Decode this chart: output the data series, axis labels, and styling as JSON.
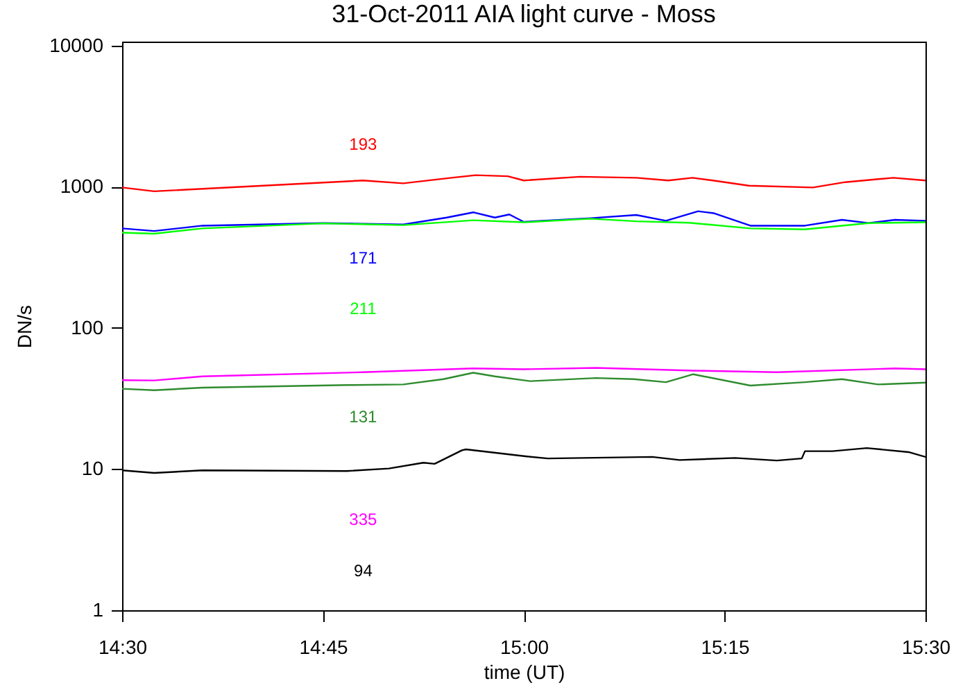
{
  "chart_data": {
    "type": "line",
    "title": "31-Oct-2011 AIA light curve - Moss",
    "xlabel": "time (UT)",
    "ylabel": "DN/s",
    "log": "y",
    "grid": false,
    "xlim": [
      14.5,
      15.5
    ],
    "xticks": [
      {
        "value": 14.5,
        "label": "14:30"
      },
      {
        "value": 14.75,
        "label": "14:45"
      },
      {
        "value": 15.0,
        "label": "15:00"
      },
      {
        "value": 15.25,
        "label": "15:15"
      },
      {
        "value": 15.5,
        "label": "15:30"
      }
    ],
    "ylim": [
      1,
      10700
    ],
    "yticks": [
      1,
      10,
      100,
      1000,
      10000
    ],
    "series": [
      {
        "name": "193",
        "color": "#ff0000",
        "x": [
          14.5,
          14.54,
          14.8,
          14.85,
          14.91,
          14.94,
          14.98,
          15.0,
          15.07,
          15.14,
          15.18,
          15.21,
          15.24,
          15.28,
          15.36,
          15.4,
          15.46,
          15.5
        ],
        "values": [
          990,
          930,
          1110,
          1060,
          1160,
          1210,
          1190,
          1110,
          1180,
          1160,
          1110,
          1160,
          1100,
          1020,
          990,
          1080,
          1160,
          1110
        ]
      },
      {
        "name": "171",
        "color": "#0000ff",
        "x": [
          14.5,
          14.54,
          14.6,
          14.75,
          14.85,
          14.904,
          14.937,
          14.964,
          14.982,
          15.0,
          15.083,
          15.14,
          15.177,
          15.217,
          15.237,
          15.282,
          15.35,
          15.396,
          15.429,
          15.462,
          15.5
        ],
        "values": [
          508,
          487,
          531,
          554,
          541,
          606,
          660,
          606,
          638,
          565,
          600,
          632,
          575,
          672,
          650,
          531,
          531,
          584,
          554,
          584,
          575
        ]
      },
      {
        "name": "211",
        "color": "#00ff00",
        "x": [
          14.5,
          14.54,
          14.6,
          14.75,
          14.85,
          14.937,
          15.0,
          15.083,
          15.14,
          15.206,
          15.282,
          15.35,
          15.429,
          15.5
        ],
        "values": [
          474,
          466,
          508,
          551,
          536,
          580,
          561,
          595,
          570,
          557,
          508,
          500,
          554,
          561
        ]
      },
      {
        "name": "131",
        "color": "#2e8b2e",
        "x": [
          14.5,
          14.54,
          14.6,
          14.78,
          14.85,
          14.9,
          14.937,
          14.964,
          15.008,
          15.09,
          15.137,
          15.177,
          15.211,
          15.282,
          15.35,
          15.396,
          15.441,
          15.5
        ],
        "values": [
          37.1,
          36.2,
          37.8,
          39.4,
          39.8,
          43.4,
          48.2,
          45.4,
          42,
          44.2,
          43.4,
          41.3,
          47,
          39.1,
          41.3,
          43.4,
          39.8,
          41
        ]
      },
      {
        "name": "335",
        "color": "#ff00ff",
        "x": [
          14.5,
          14.54,
          14.6,
          14.8,
          14.937,
          15.0,
          15.09,
          15.211,
          15.315,
          15.462,
          15.5
        ],
        "values": [
          42.7,
          42.5,
          45.4,
          48.6,
          51.7,
          51,
          52.2,
          49.9,
          48.6,
          51.7,
          51
        ]
      },
      {
        "name": "94",
        "color": "#000000",
        "x": [
          14.5,
          14.54,
          14.6,
          14.78,
          14.832,
          14.875,
          14.889,
          14.923,
          14.928,
          15.004,
          15.03,
          15.073,
          15.16,
          15.194,
          15.263,
          15.315,
          15.346,
          15.35,
          15.384,
          15.427,
          15.479,
          15.5
        ],
        "values": [
          9.8,
          9.4,
          9.8,
          9.7,
          10.1,
          11.1,
          10.9,
          13.6,
          13.8,
          12.3,
          11.9,
          12,
          12.2,
          11.6,
          12,
          11.5,
          11.9,
          13.4,
          13.4,
          14.1,
          13.2,
          12.2
        ]
      }
    ]
  }
}
